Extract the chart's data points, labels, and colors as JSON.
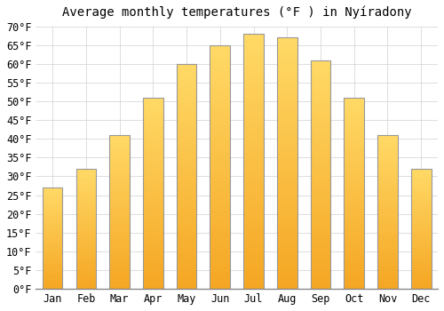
{
  "title": "Average monthly temperatures (°F ) in Nyíradony",
  "months": [
    "Jan",
    "Feb",
    "Mar",
    "Apr",
    "May",
    "Jun",
    "Jul",
    "Aug",
    "Sep",
    "Oct",
    "Nov",
    "Dec"
  ],
  "values": [
    27,
    32,
    41,
    51,
    60,
    65,
    68,
    67,
    61,
    51,
    41,
    32
  ],
  "bar_color_bottom": "#F5A623",
  "bar_color_top": "#FFD966",
  "bar_edge_color": "#999999",
  "ylim_min": 0,
  "ylim_max": 70,
  "ytick_step": 5,
  "background_color": "#ffffff",
  "grid_color": "#d8d8d8",
  "title_fontsize": 10,
  "tick_fontsize": 8.5,
  "font_family": "monospace",
  "bar_width": 0.6
}
